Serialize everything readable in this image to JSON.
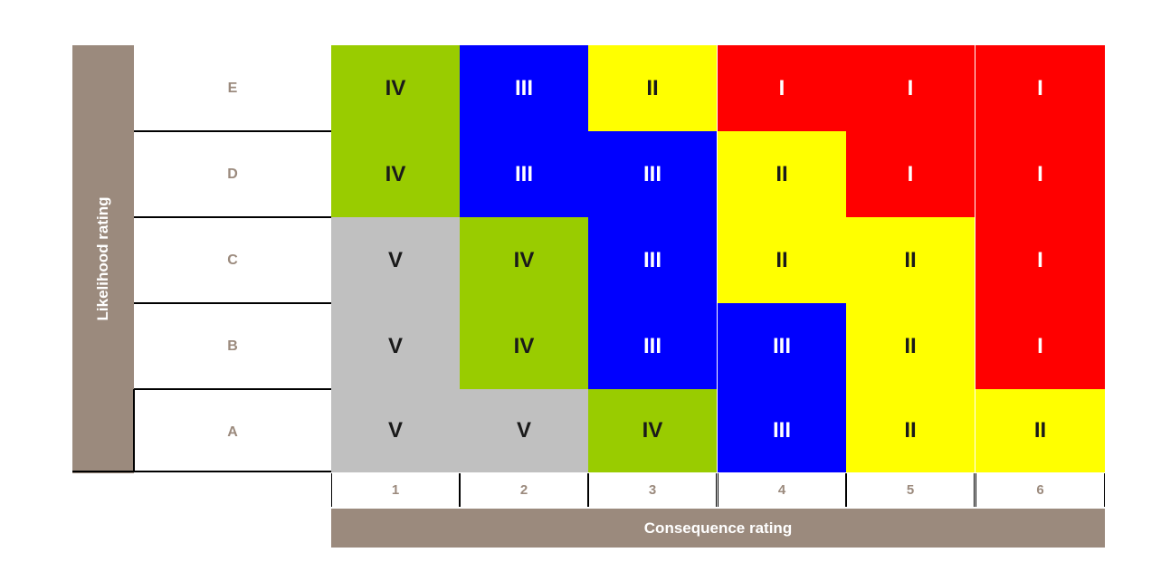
{
  "y_axis_label": "Likelihood rating",
  "x_axis_label": "Consequence rating",
  "rows": [
    "E",
    "D",
    "C",
    "B",
    "A"
  ],
  "columns": [
    "1",
    "2",
    "3",
    "4",
    "5",
    "6"
  ],
  "colors": {
    "green": "#99cc00",
    "blue": "#0000ff",
    "yellow": "#ffff00",
    "red": "#ff0000",
    "grey": "#c0c0c0",
    "label_brown": "#9b8a7d"
  },
  "cells": [
    {
      "row": 0,
      "col": 0,
      "text": "IV",
      "color": "green"
    },
    {
      "row": 0,
      "col": 1,
      "text": "III",
      "color": "blue"
    },
    {
      "row": 0,
      "col": 2,
      "text": "II",
      "color": "yellow"
    },
    {
      "row": 0,
      "col": 3,
      "text": "I",
      "color": "red"
    },
    {
      "row": 0,
      "col": 4,
      "text": "I",
      "color": "red"
    },
    {
      "row": 0,
      "col": 5,
      "text": "I",
      "color": "red"
    },
    {
      "row": 1,
      "col": 0,
      "text": "IV",
      "color": "green"
    },
    {
      "row": 1,
      "col": 1,
      "text": "III",
      "color": "blue"
    },
    {
      "row": 1,
      "col": 2,
      "text": "III",
      "color": "blue"
    },
    {
      "row": 1,
      "col": 3,
      "text": "II",
      "color": "yellow"
    },
    {
      "row": 1,
      "col": 4,
      "text": "I",
      "color": "red"
    },
    {
      "row": 1,
      "col": 5,
      "text": "I",
      "color": "red"
    },
    {
      "row": 2,
      "col": 0,
      "text": "V",
      "color": "grey"
    },
    {
      "row": 2,
      "col": 1,
      "text": "IV",
      "color": "green"
    },
    {
      "row": 2,
      "col": 2,
      "text": "III",
      "color": "blue"
    },
    {
      "row": 2,
      "col": 3,
      "text": "II",
      "color": "yellow"
    },
    {
      "row": 2,
      "col": 4,
      "text": "II",
      "color": "yellow"
    },
    {
      "row": 2,
      "col": 5,
      "text": "I",
      "color": "red"
    },
    {
      "row": 3,
      "col": 0,
      "text": "V",
      "color": "grey"
    },
    {
      "row": 3,
      "col": 1,
      "text": "IV",
      "color": "green"
    },
    {
      "row": 3,
      "col": 2,
      "text": "III",
      "color": "blue"
    },
    {
      "row": 3,
      "col": 3,
      "text": "III",
      "color": "blue"
    },
    {
      "row": 3,
      "col": 4,
      "text": "II",
      "color": "yellow"
    },
    {
      "row": 3,
      "col": 5,
      "text": "I",
      "color": "red"
    },
    {
      "row": 4,
      "col": 0,
      "text": "V",
      "color": "grey"
    },
    {
      "row": 4,
      "col": 1,
      "text": "V",
      "color": "grey"
    },
    {
      "row": 4,
      "col": 2,
      "text": "IV",
      "color": "green"
    },
    {
      "row": 4,
      "col": 3,
      "text": "III",
      "color": "blue"
    },
    {
      "row": 4,
      "col": 4,
      "text": "II",
      "color": "yellow"
    },
    {
      "row": 4,
      "col": 5,
      "text": "II",
      "color": "yellow"
    }
  ]
}
